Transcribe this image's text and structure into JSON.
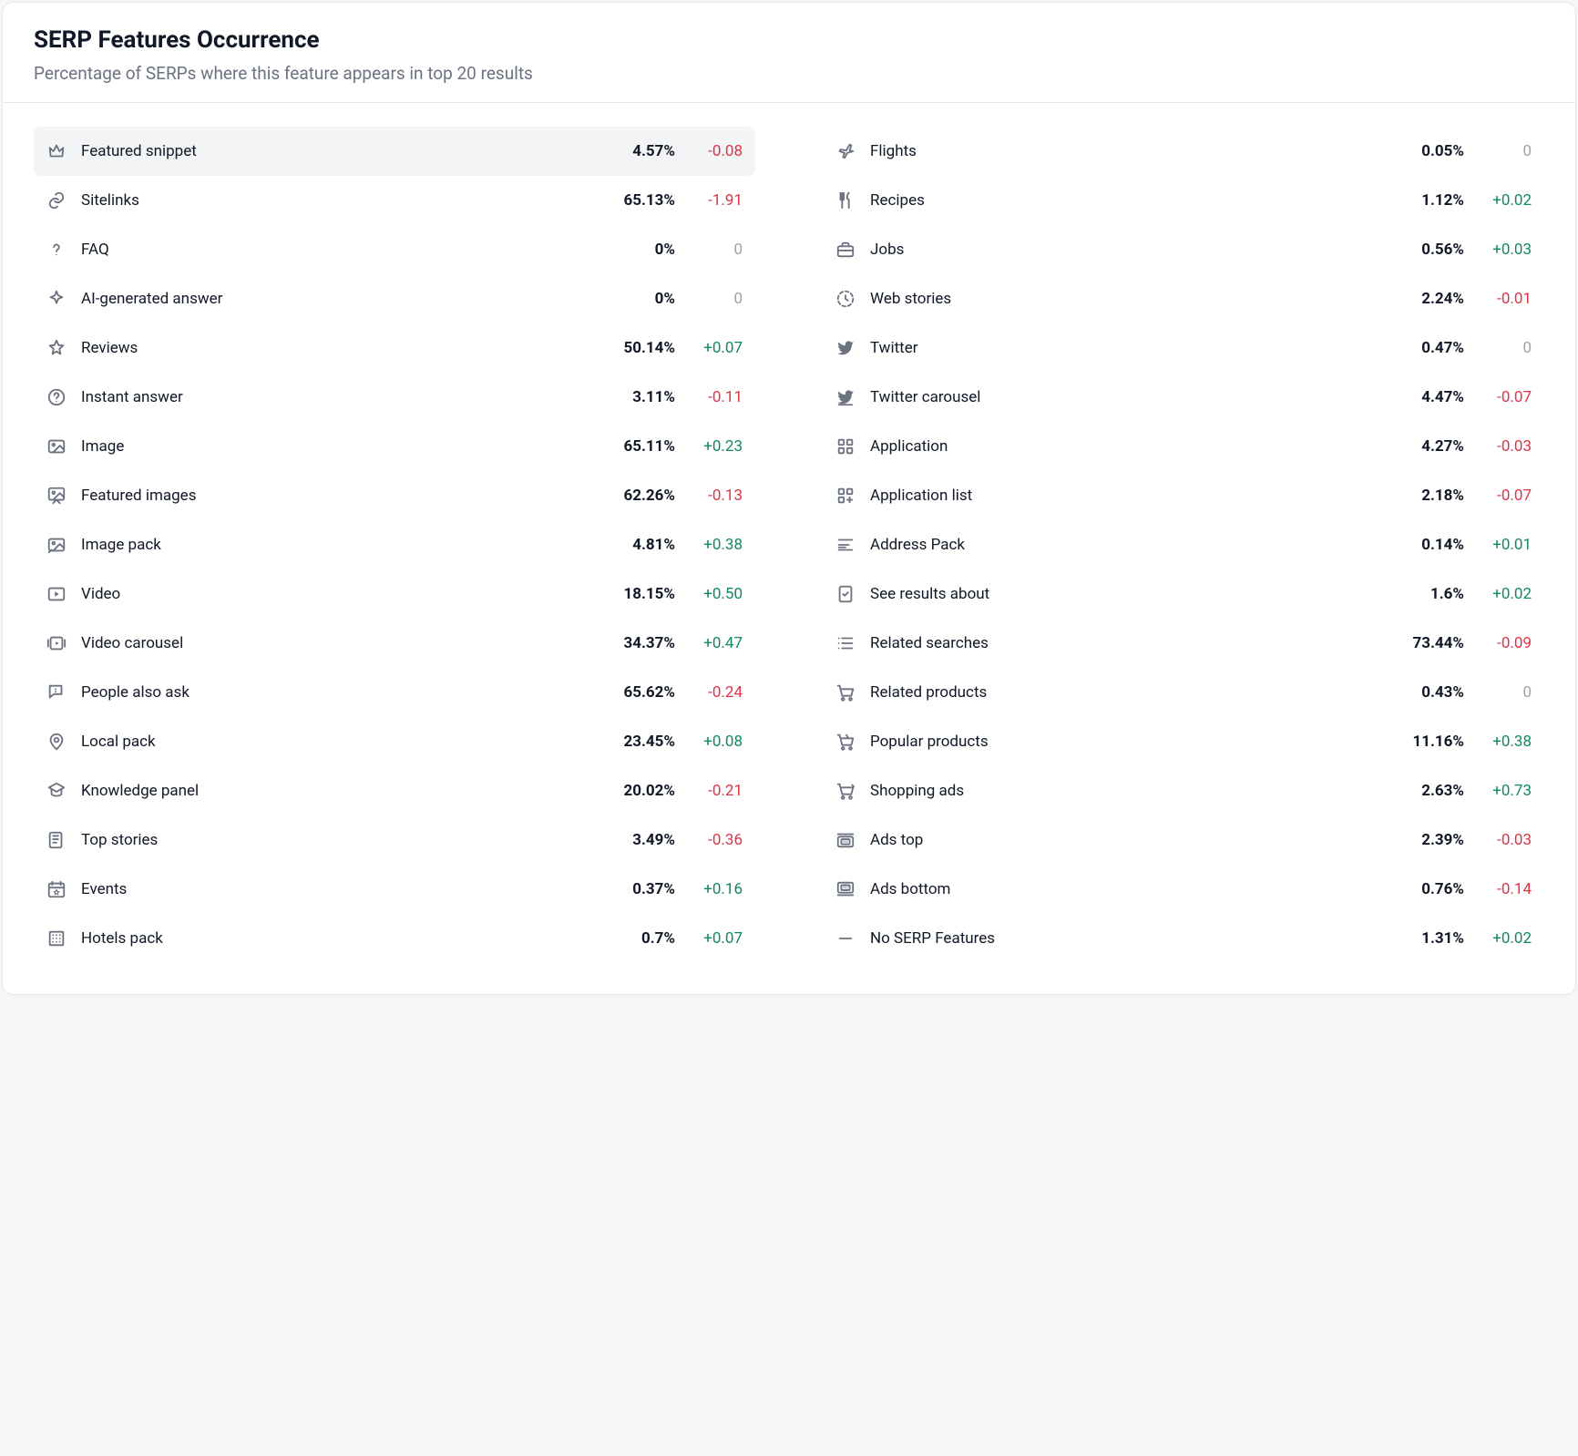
{
  "header": {
    "title": "SERP Features Occurrence",
    "subtitle": "Percentage of SERPs where this feature appears in top 20 results"
  },
  "colors": {
    "positive": "#0f8a5f",
    "negative": "#dc3545",
    "zero": "#9ca3af",
    "text": "#111827",
    "muted": "#6b7280",
    "selected_bg": "#f3f4f6",
    "border": "#e5e7eb",
    "background": "#ffffff"
  },
  "features": [
    {
      "icon": "crown",
      "label": "Featured snippet",
      "pct": "4.57%",
      "delta": "-0.08",
      "selected": true
    },
    {
      "icon": "link",
      "label": "Sitelinks",
      "pct": "65.13%",
      "delta": "-1.91"
    },
    {
      "icon": "question",
      "label": "FAQ",
      "pct": "0%",
      "delta": "0"
    },
    {
      "icon": "sparkle",
      "label": "AI-generated answer",
      "pct": "0%",
      "delta": "0"
    },
    {
      "icon": "star",
      "label": "Reviews",
      "pct": "50.14%",
      "delta": "+0.07"
    },
    {
      "icon": "question-circle",
      "label": "Instant answer",
      "pct": "3.11%",
      "delta": "-0.11"
    },
    {
      "icon": "image",
      "label": "Image",
      "pct": "65.11%",
      "delta": "+0.23"
    },
    {
      "icon": "featured-images",
      "label": "Featured images",
      "pct": "62.26%",
      "delta": "-0.13"
    },
    {
      "icon": "image-pack",
      "label": "Image pack",
      "pct": "4.81%",
      "delta": "+0.38"
    },
    {
      "icon": "video",
      "label": "Video",
      "pct": "18.15%",
      "delta": "+0.50"
    },
    {
      "icon": "video-carousel",
      "label": "Video carousel",
      "pct": "34.37%",
      "delta": "+0.47"
    },
    {
      "icon": "people-ask",
      "label": "People also ask",
      "pct": "65.62%",
      "delta": "-0.24"
    },
    {
      "icon": "pin",
      "label": "Local pack",
      "pct": "23.45%",
      "delta": "+0.08"
    },
    {
      "icon": "knowledge",
      "label": "Knowledge panel",
      "pct": "20.02%",
      "delta": "-0.21"
    },
    {
      "icon": "newspaper",
      "label": "Top stories",
      "pct": "3.49%",
      "delta": "-0.36"
    },
    {
      "icon": "calendar-star",
      "label": "Events",
      "pct": "0.37%",
      "delta": "+0.16"
    },
    {
      "icon": "hotel",
      "label": "Hotels pack",
      "pct": "0.7%",
      "delta": "+0.07"
    },
    {
      "icon": "plane",
      "label": "Flights",
      "pct": "0.05%",
      "delta": "0"
    },
    {
      "icon": "utensils",
      "label": "Recipes",
      "pct": "1.12%",
      "delta": "+0.02"
    },
    {
      "icon": "briefcase",
      "label": "Jobs",
      "pct": "0.56%",
      "delta": "+0.03"
    },
    {
      "icon": "webstories",
      "label": "Web stories",
      "pct": "2.24%",
      "delta": "-0.01"
    },
    {
      "icon": "twitter",
      "label": "Twitter",
      "pct": "0.47%",
      "delta": "0"
    },
    {
      "icon": "twitter-carousel",
      "label": "Twitter carousel",
      "pct": "4.47%",
      "delta": "-0.07"
    },
    {
      "icon": "apps",
      "label": "Application",
      "pct": "4.27%",
      "delta": "-0.03"
    },
    {
      "icon": "apps-plus",
      "label": "Application list",
      "pct": "2.18%",
      "delta": "-0.07"
    },
    {
      "icon": "address",
      "label": "Address Pack",
      "pct": "0.14%",
      "delta": "+0.01"
    },
    {
      "icon": "doc-check",
      "label": "See results about",
      "pct": "1.6%",
      "delta": "+0.02"
    },
    {
      "icon": "list",
      "label": "Related searches",
      "pct": "73.44%",
      "delta": "-0.09"
    },
    {
      "icon": "cart-rel",
      "label": "Related products",
      "pct": "0.43%",
      "delta": "0"
    },
    {
      "icon": "cart-pop",
      "label": "Popular products",
      "pct": "11.16%",
      "delta": "+0.38"
    },
    {
      "icon": "cart-ads",
      "label": "Shopping ads",
      "pct": "2.63%",
      "delta": "+0.73"
    },
    {
      "icon": "ads-top",
      "label": "Ads top",
      "pct": "2.39%",
      "delta": "-0.03"
    },
    {
      "icon": "ads-bottom",
      "label": "Ads bottom",
      "pct": "0.76%",
      "delta": "-0.14"
    },
    {
      "icon": "minus",
      "label": "No SERP Features",
      "pct": "1.31%",
      "delta": "+0.02"
    }
  ]
}
